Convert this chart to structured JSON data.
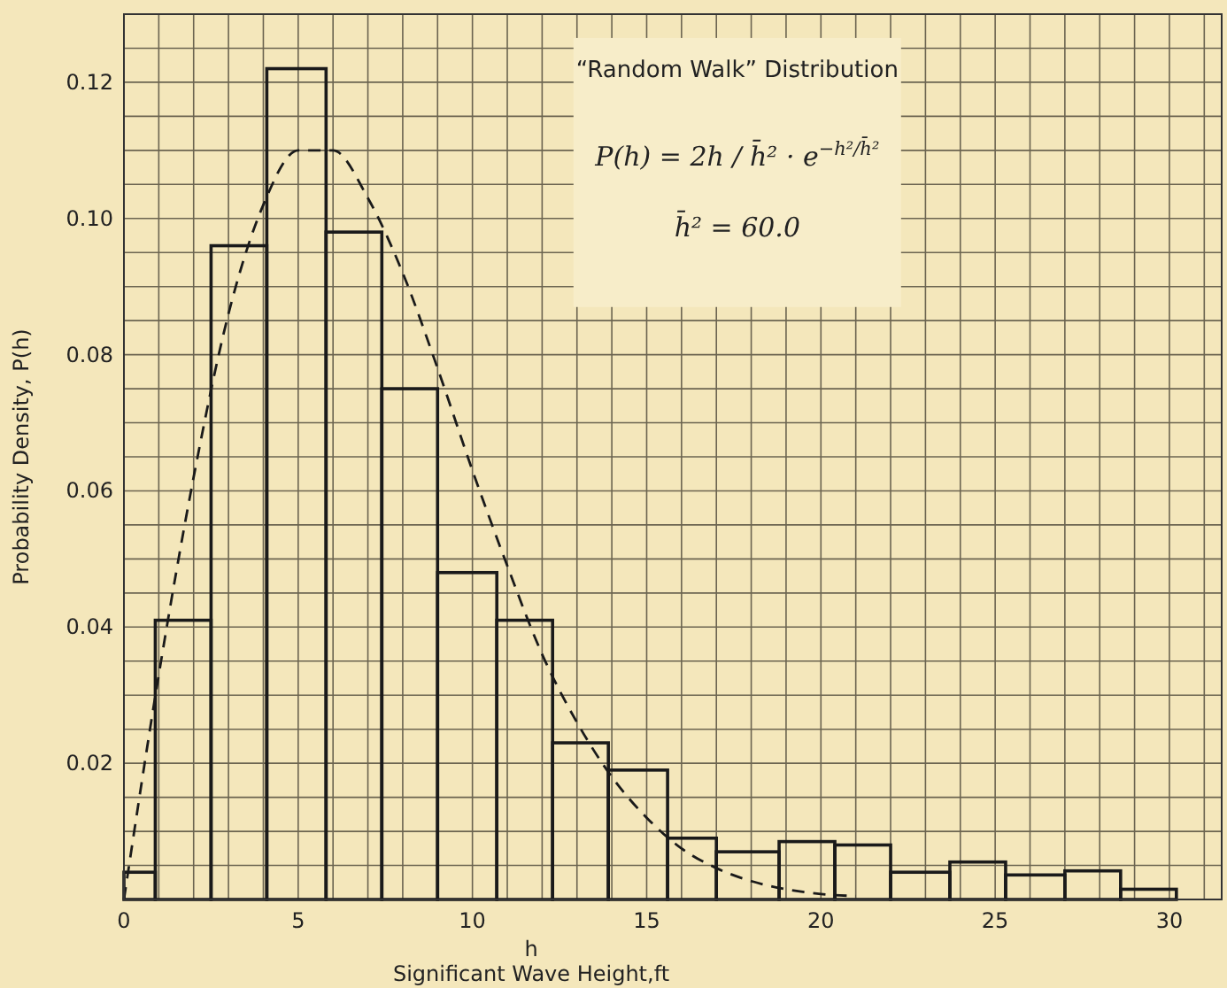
{
  "chart_data": {
    "type": "histogram",
    "xlabel": "h\nSignificant Wave Height,ft",
    "ylabel": "Probability Density, P(h)",
    "annotations": [
      "“Random Walk” Distribution",
      "P(h) = 2h / h̄² · e$^{−h²/h̄²}$",
      "h̄² = 60.0"
    ],
    "series": [
      {
        "color": "#1a1a1a",
        "bins": [
          0,
          0.9,
          2.5,
          4.1,
          5.8,
          7.4,
          9.0,
          10.7,
          12.3,
          13.9,
          15.6,
          17.0,
          18.8,
          20.4,
          22.0,
          23.7,
          25.3,
          27.0,
          28.6,
          30.2
        ],
        "values": [
          0.004,
          0.041,
          0.096,
          0.122,
          0.098,
          0.075,
          0.048,
          0.041,
          0.023,
          0.019,
          0.009,
          0.007,
          0.0085,
          0.008,
          0.004,
          0.0055,
          0.0036,
          0.0042,
          0.0015
        ]
      },
      {
        "type": "line",
        "color": "#1a1a1a",
        "line_style": "dashed",
        "x": [
          0,
          1,
          2,
          3,
          4,
          5,
          6,
          7,
          8,
          9,
          10,
          11,
          12,
          13,
          14,
          15,
          16,
          17,
          18,
          19,
          20,
          21
        ],
        "values": [
          0,
          0.033,
          0.062,
          0.086,
          0.102,
          0.11,
          0.11,
          0.103,
          0.092,
          0.078,
          0.063,
          0.049,
          0.036,
          0.026,
          0.018,
          0.012,
          0.0075,
          0.0046,
          0.0027,
          0.0015,
          0.0008,
          0.0005
        ]
      }
    ],
    "xlim": [
      0,
      31.5
    ],
    "ylim": [
      0,
      0.13
    ],
    "xticks": [
      0,
      {
        "value": 1,
        "label": null
      },
      {
        "value": 2,
        "label": null
      },
      {
        "value": 3,
        "label": null
      },
      {
        "value": 4,
        "label": null
      },
      5,
      {
        "value": 6,
        "label": null
      },
      {
        "value": 7,
        "label": null
      },
      {
        "value": 8,
        "label": null
      },
      {
        "value": 9,
        "label": null
      },
      10,
      {
        "value": 11,
        "label": null
      },
      {
        "value": 12,
        "label": null
      },
      {
        "value": 13,
        "label": null
      },
      {
        "value": 14,
        "label": null
      },
      15,
      {
        "value": 16,
        "label": null
      },
      {
        "value": 17,
        "label": null
      },
      {
        "value": 18,
        "label": null
      },
      {
        "value": 19,
        "label": null
      },
      20,
      {
        "value": 21,
        "label": null
      },
      {
        "value": 22,
        "label": null
      },
      {
        "value": 23,
        "label": null
      },
      {
        "value": 24,
        "label": null
      },
      25,
      {
        "value": 26,
        "label": null
      },
      {
        "value": 27,
        "label": null
      },
      {
        "value": 28,
        "label": null
      },
      {
        "value": 29,
        "label": null
      },
      30,
      {
        "value": 31,
        "label": null
      }
    ],
    "yticks": [
      {
        "value": 0,
        "label": null
      },
      {
        "value": 0.005,
        "label": null
      },
      {
        "value": 0.01,
        "label": null
      },
      {
        "value": 0.015,
        "label": null
      },
      {
        "value": 0.02,
        "label": "0.02"
      },
      {
        "value": 0.025,
        "label": null
      },
      {
        "value": 0.03,
        "label": null
      },
      {
        "value": 0.035,
        "label": null
      },
      {
        "value": 0.04,
        "label": "0.04"
      },
      {
        "value": 0.045,
        "label": null
      },
      {
        "value": 0.05,
        "label": null
      },
      {
        "value": 0.055,
        "label": null
      },
      {
        "value": 0.06,
        "label": "0.06"
      },
      {
        "value": 0.065,
        "label": null
      },
      {
        "value": 0.07,
        "label": null
      },
      {
        "value": 0.075,
        "label": null
      },
      {
        "value": 0.08,
        "label": "0.08"
      },
      {
        "value": 0.085,
        "label": null
      },
      {
        "value": 0.09,
        "label": null
      },
      {
        "value": 0.095,
        "label": null
      },
      {
        "value": 0.1,
        "label": "0.10"
      },
      {
        "value": 0.105,
        "label": null
      },
      {
        "value": 0.11,
        "label": null
      },
      {
        "value": 0.115,
        "label": null
      },
      {
        "value": 0.12,
        "label": "0.12"
      },
      {
        "value": 0.125,
        "label": null
      },
      {
        "value": 0.13,
        "label": null
      }
    ],
    "grid": true
  }
}
